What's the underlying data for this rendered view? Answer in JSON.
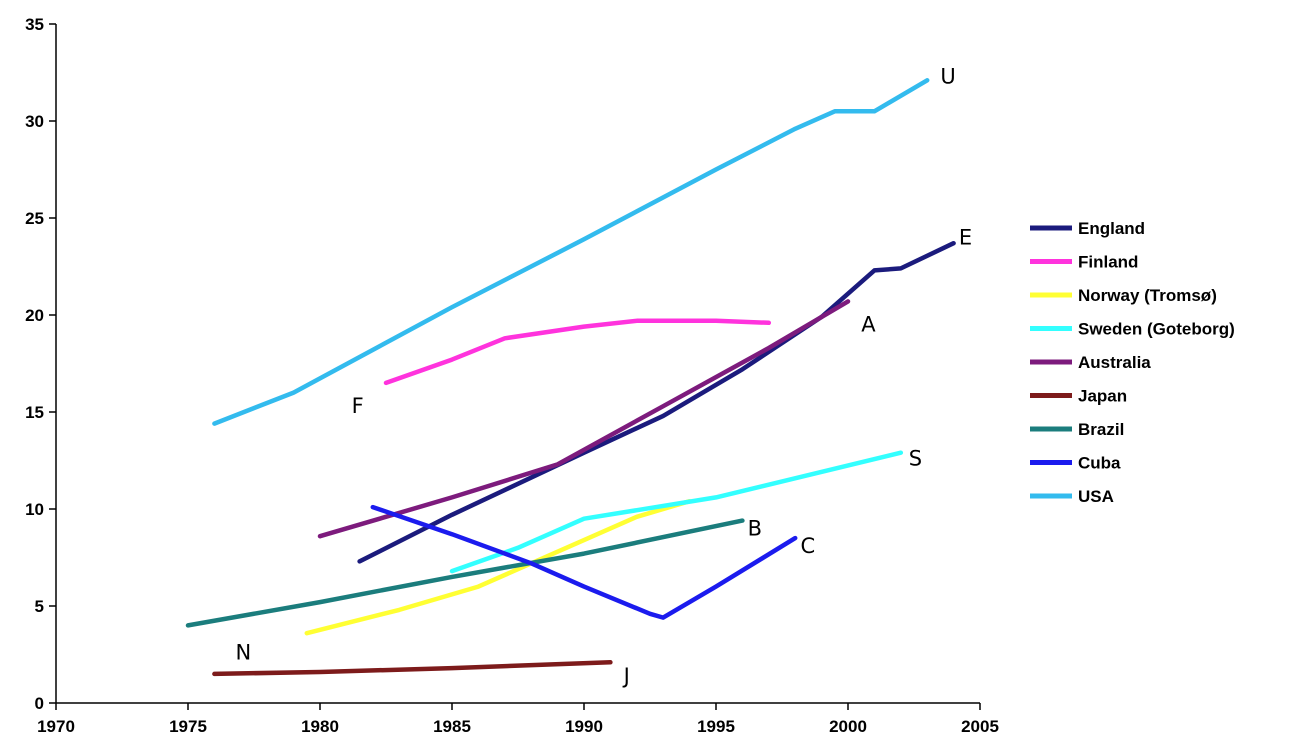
{
  "chart_data": {
    "type": "line",
    "title": "",
    "xlabel": "",
    "ylabel": "",
    "xlim": [
      1970,
      2005
    ],
    "ylim": [
      0,
      35
    ],
    "x_ticks": [
      "1970",
      "1975",
      "1980",
      "1985",
      "1990",
      "1995",
      "2000",
      "2005"
    ],
    "y_ticks": [
      "0",
      "5",
      "10",
      "15",
      "20",
      "25",
      "30",
      "35"
    ],
    "grid": false,
    "legend_position": "right",
    "series": [
      {
        "name": "England",
        "label": "E",
        "color": "#1b1b7d",
        "points": [
          [
            1981.5,
            7.3
          ],
          [
            1985,
            9.7
          ],
          [
            1990,
            12.9
          ],
          [
            1993,
            14.8
          ],
          [
            1996,
            17.2
          ],
          [
            1999,
            19.9
          ],
          [
            2001,
            22.3
          ],
          [
            2002,
            22.4
          ],
          [
            2004,
            23.7
          ]
        ]
      },
      {
        "name": "Finland",
        "label": "F",
        "color": "#ff33dd",
        "points": [
          [
            1982.5,
            16.5
          ],
          [
            1985,
            17.7
          ],
          [
            1987,
            18.8
          ],
          [
            1990,
            19.4
          ],
          [
            1992,
            19.7
          ],
          [
            1995,
            19.7
          ],
          [
            1997,
            19.6
          ]
        ]
      },
      {
        "name": "Norway (Tromsø)",
        "label": "N",
        "color": "#ffff33",
        "points": [
          [
            1979.5,
            3.6
          ],
          [
            1983,
            4.8
          ],
          [
            1986,
            6.0
          ],
          [
            1989,
            7.8
          ],
          [
            1992,
            9.6
          ],
          [
            1994,
            10.4
          ]
        ]
      },
      {
        "name": "Sweden (Goteborg)",
        "label": "S",
        "color": "#33ffff",
        "points": [
          [
            1985,
            6.8
          ],
          [
            1987.5,
            8.0
          ],
          [
            1990,
            9.5
          ],
          [
            1995,
            10.6
          ],
          [
            2002,
            12.9
          ]
        ]
      },
      {
        "name": "Australia",
        "label": "A",
        "color": "#7d1b7d",
        "points": [
          [
            1980,
            8.6
          ],
          [
            1985,
            10.6
          ],
          [
            1989,
            12.3
          ],
          [
            1993,
            15.3
          ],
          [
            1997,
            18.3
          ],
          [
            2000,
            20.7
          ]
        ]
      },
      {
        "name": "Japan",
        "label": "J",
        "color": "#7d1b1b",
        "points": [
          [
            1976,
            1.5
          ],
          [
            1980,
            1.6
          ],
          [
            1985,
            1.8
          ],
          [
            1991,
            2.1
          ]
        ]
      },
      {
        "name": "Brazil",
        "label": "B",
        "color": "#1b7d7d",
        "points": [
          [
            1975,
            4.0
          ],
          [
            1980,
            5.2
          ],
          [
            1985,
            6.5
          ],
          [
            1990,
            7.7
          ],
          [
            1996,
            9.4
          ]
        ]
      },
      {
        "name": "Cuba",
        "label": "C",
        "color": "#1b1bee",
        "points": [
          [
            1982,
            10.1
          ],
          [
            1985,
            8.7
          ],
          [
            1988,
            7.2
          ],
          [
            1990,
            6.0
          ],
          [
            1992.5,
            4.6
          ],
          [
            1993,
            4.4
          ],
          [
            1995,
            6.0
          ],
          [
            1998,
            8.5
          ]
        ]
      },
      {
        "name": "USA",
        "label": "U",
        "color": "#33bbee",
        "points": [
          [
            1976,
            14.4
          ],
          [
            1979,
            16.0
          ],
          [
            1985,
            20.4
          ],
          [
            1990,
            23.9
          ],
          [
            1995,
            27.5
          ],
          [
            1998,
            29.6
          ],
          [
            1999.5,
            30.5
          ],
          [
            2001,
            30.5
          ],
          [
            2003,
            32.1
          ]
        ]
      }
    ],
    "end_labels": [
      {
        "text": "U",
        "x": 2003.5,
        "y": 32.3
      },
      {
        "text": "E",
        "x": 2004.2,
        "y": 24.0
      },
      {
        "text": "A",
        "x": 2000.5,
        "y": 19.5
      },
      {
        "text": "F",
        "x": 1981.2,
        "y": 15.3
      },
      {
        "text": "S",
        "x": 2002.3,
        "y": 12.6
      },
      {
        "text": "B",
        "x": 1996.2,
        "y": 9.0
      },
      {
        "text": "C",
        "x": 1998.2,
        "y": 8.1
      },
      {
        "text": "N",
        "x": 1976.8,
        "y": 2.6
      },
      {
        "text": "J",
        "x": 1991.5,
        "y": 1.4
      }
    ]
  }
}
